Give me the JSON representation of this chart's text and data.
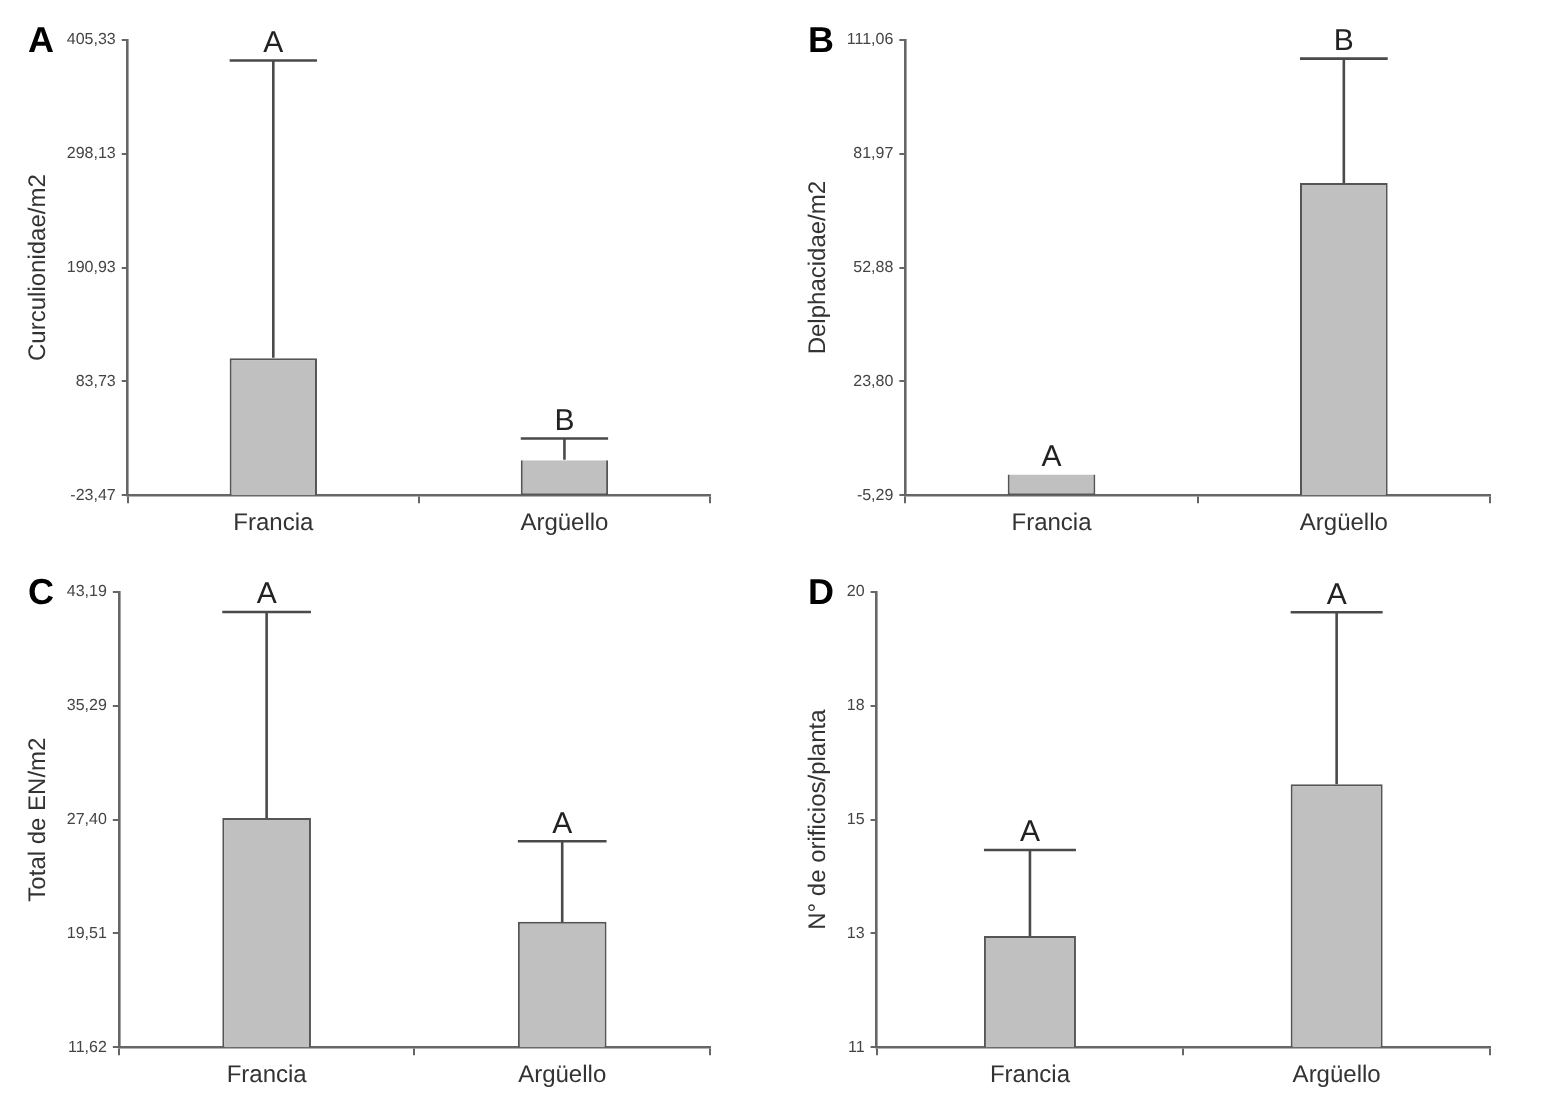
{
  "chart_data": [
    {
      "type": "bar",
      "title": "A",
      "ylabel": "Curculionidae/m2",
      "categories": [
        "Francia",
        "Argüello"
      ],
      "color": "#c0c0c0",
      "values": [
        129,
        33
      ],
      "base": [
        -23.47,
        -23.47
      ],
      "errors": [
        [
          106,
          386
        ],
        [
          10,
          30
        ]
      ],
      "ylim": [
        -23.47,
        405.33
      ],
      "yticks": [
        {
          "value": -23.47,
          "label": "-23,47"
        },
        {
          "value": 83.73,
          "label": "83,73"
        },
        {
          "value": 190.93,
          "label": "190,93"
        },
        {
          "value": 298.13,
          "label": "298,13"
        },
        {
          "value": 405.33,
          "label": "405,33"
        }
      ],
      "annotations": [
        {
          "text": "A",
          "x": "Francia",
          "y": 386
        },
        {
          "text": "B",
          "x": "Argüello",
          "y": 30
        }
      ],
      "grid": false,
      "legend": false
    },
    {
      "type": "bar",
      "title": "B",
      "ylabel": "Delphacidae/m2",
      "categories": [
        "Francia",
        "Argüello"
      ],
      "color": "#c0c0c0",
      "values": [
        5.3,
        79.8
      ],
      "base": [
        -5.29,
        -5.29
      ],
      "errors": [
        null,
        [
          74.5,
          106.3
        ]
      ],
      "ylim": [
        -5.29,
        111.06
      ],
      "yticks": [
        {
          "value": -5.29,
          "label": "-5,29"
        },
        {
          "value": 23.8,
          "label": "23,80"
        },
        {
          "value": 52.88,
          "label": "52,88"
        },
        {
          "value": 81.97,
          "label": "81,97"
        },
        {
          "value": 111.06,
          "label": "111,06"
        }
      ],
      "annotations": [
        {
          "text": "A",
          "x": "Francia",
          "y": 0
        },
        {
          "text": "B",
          "x": "Argüello",
          "y": 106.3
        }
      ],
      "grid": false,
      "legend": false
    },
    {
      "type": "bar",
      "title": "C",
      "ylabel": "Total de EN/m2",
      "categories": [
        "Francia",
        "Argüello"
      ],
      "color": "#c0c0c0",
      "values": [
        15.9,
        8.7
      ],
      "base": [
        11.62,
        11.62
      ],
      "errors": [
        [
          27.5,
          41.8
        ],
        [
          20.3,
          25.9
        ]
      ],
      "ylim": [
        11.62,
        43.19
      ],
      "yticks": [
        {
          "value": 11.62,
          "label": "11,62"
        },
        {
          "value": 19.51,
          "label": "19,51"
        },
        {
          "value": 27.4,
          "label": "27,40"
        },
        {
          "value": 35.29,
          "label": "35,29"
        },
        {
          "value": 43.19,
          "label": "43,19"
        }
      ],
      "annotations": [
        {
          "text": "A",
          "x": "Francia",
          "y": 41.8
        },
        {
          "text": "A",
          "x": "Argüello",
          "y": 25.9
        }
      ],
      "grid": false,
      "legend": false
    },
    {
      "type": "bar",
      "title": "D",
      "ylabel": "N° de orificios/planta",
      "categories": [
        "Francia",
        "Argüello"
      ],
      "color": "#c0c0c0",
      "values": [
        2.2,
        5.2
      ],
      "base": [
        11,
        11
      ],
      "errors": [
        [
          13.2,
          14.9
        ],
        [
          16.2,
          19.6
        ]
      ],
      "ylim": [
        11,
        20
      ],
      "yticks": [
        11,
        {
          "value": 13.25,
          "label": "13"
        },
        {
          "value": 15.5,
          "label": "15"
        },
        {
          "value": 17.75,
          "label": "18"
        },
        20
      ],
      "annotations": [
        {
          "text": "A",
          "x": "Francia",
          "y": 14.9
        },
        {
          "text": "A",
          "x": "Argüello",
          "y": 19.6
        }
      ],
      "grid": false,
      "legend": false
    }
  ]
}
